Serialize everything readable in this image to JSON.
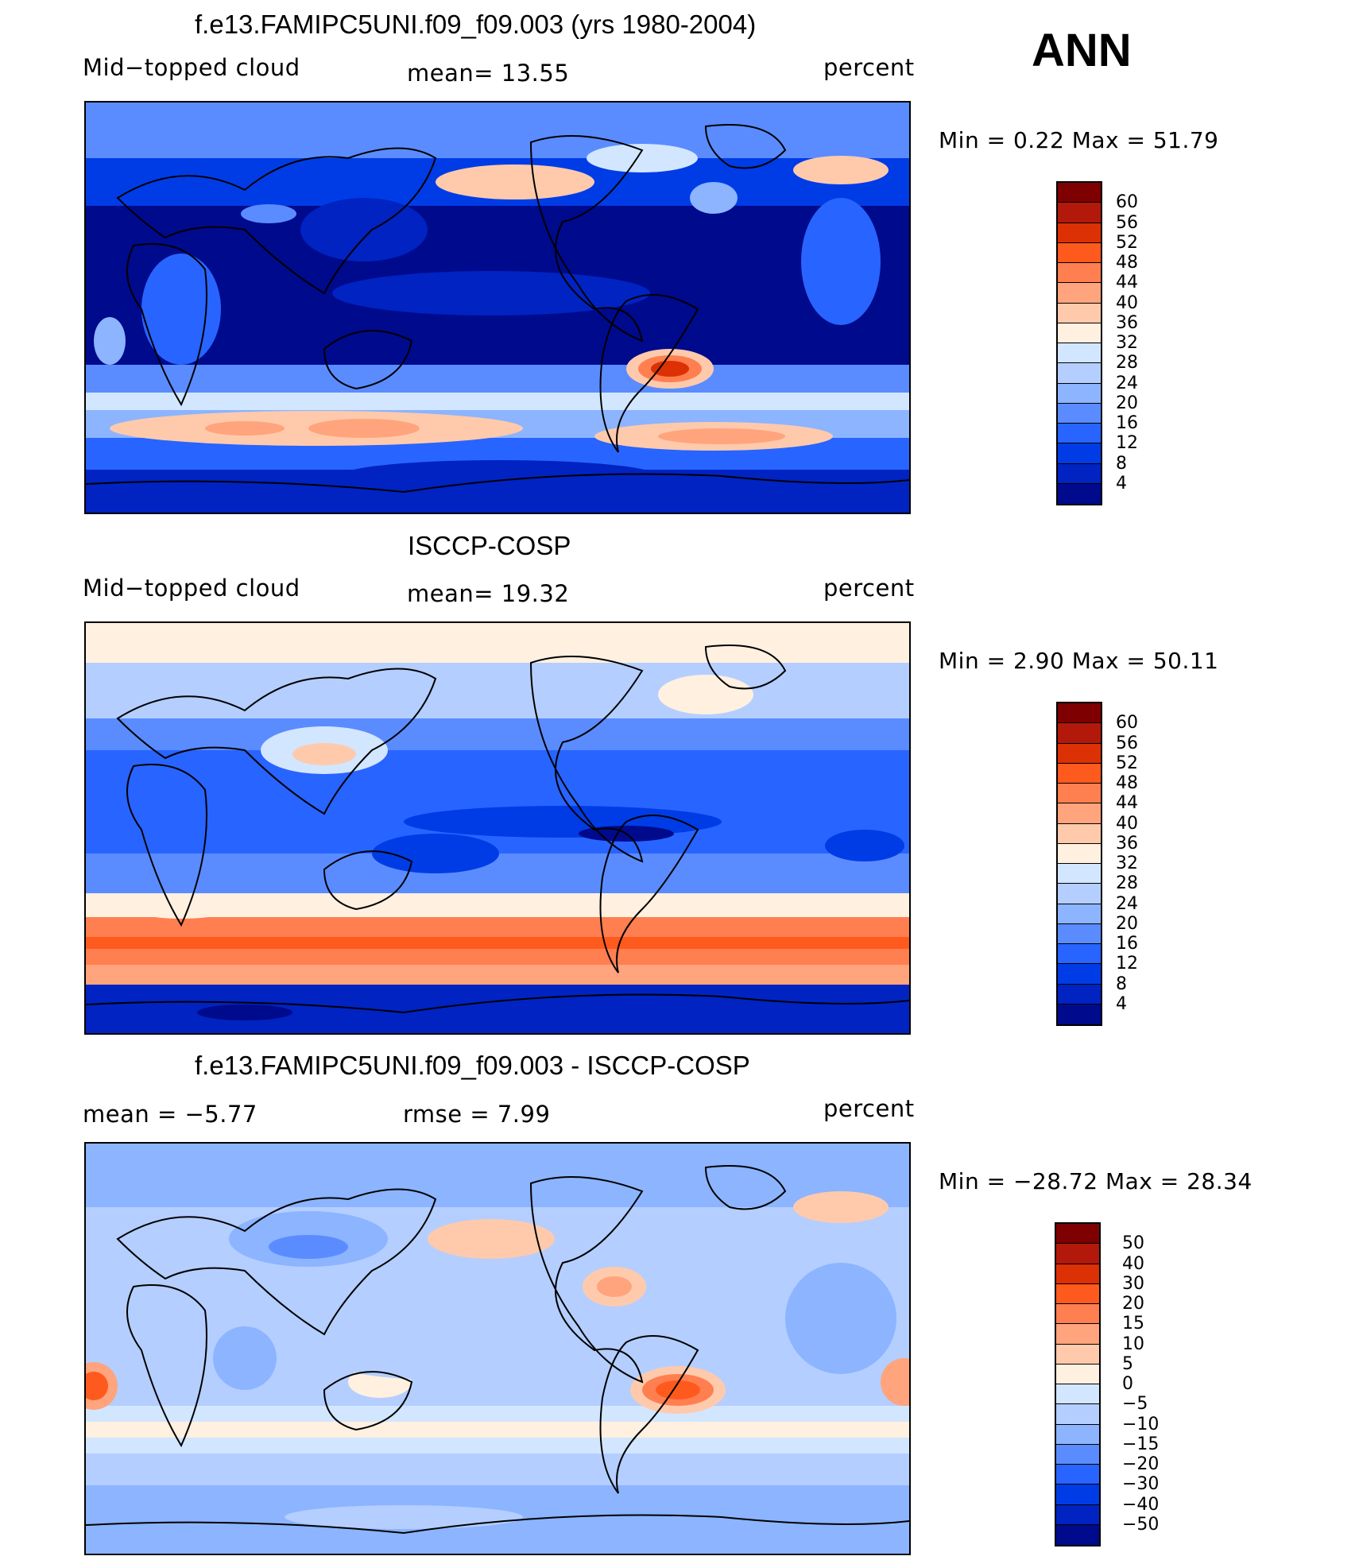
{
  "header": {
    "ann_label": "ANN"
  },
  "panels": [
    {
      "id": "model",
      "title": "f.e13.FAMIPC5UNI.f09_f09.003 (yrs 1980-2004)",
      "left_label": "Mid−topped  cloud",
      "center_label": "mean=   13.55",
      "right_label": "percent",
      "minmax": "Min  =    0.22  Max  =   51.79",
      "colorbar": {
        "ticks": [
          "60",
          "56",
          "52",
          "48",
          "44",
          "40",
          "36",
          "32",
          "28",
          "24",
          "20",
          "16",
          "12",
          "8",
          "4"
        ],
        "colors": [
          "#7f0000",
          "#b3190a",
          "#dc3005",
          "#ff5a1e",
          "#ff7f50",
          "#ffa47c",
          "#ffcaac",
          "#fff0e0",
          "#d2e6ff",
          "#b4ceff",
          "#8cb4ff",
          "#5a8cff",
          "#2864ff",
          "#003ce6",
          "#0023c2",
          "#000a8c"
        ]
      },
      "map_palette": "abs"
    },
    {
      "id": "obs",
      "title": "ISCCP-COSP",
      "left_label": "Mid−topped  cloud",
      "center_label": "mean=   19.32",
      "right_label": "percent",
      "minmax": "Min  =    2.90  Max  =   50.11",
      "colorbar": {
        "ticks": [
          "60",
          "56",
          "52",
          "48",
          "44",
          "40",
          "36",
          "32",
          "28",
          "24",
          "20",
          "16",
          "12",
          "8",
          "4"
        ],
        "colors": [
          "#7f0000",
          "#b3190a",
          "#dc3005",
          "#ff5a1e",
          "#ff7f50",
          "#ffa47c",
          "#ffcaac",
          "#fff0e0",
          "#d2e6ff",
          "#b4ceff",
          "#8cb4ff",
          "#5a8cff",
          "#2864ff",
          "#003ce6",
          "#0023c2",
          "#000a8c"
        ]
      },
      "map_palette": "abs"
    },
    {
      "id": "diff",
      "title": "f.e13.FAMIPC5UNI.f09_f09.003 - ISCCP-COSP",
      "left_label": "mean  =    −5.77",
      "center_label": "rmse  =     7.99",
      "right_label": "percent",
      "minmax": "Min  = −28.72  Max  =   28.34",
      "colorbar": {
        "ticks": [
          "50",
          "40",
          "30",
          "20",
          "15",
          "10",
          "5",
          "0",
          "−5",
          "−10",
          "−15",
          "−20",
          "−30",
          "−40",
          "−50"
        ],
        "colors": [
          "#7f0000",
          "#b3190a",
          "#dc3005",
          "#ff5a1e",
          "#ff7f50",
          "#ffa47c",
          "#ffcaac",
          "#fff0e0",
          "#d2e6ff",
          "#b4ceff",
          "#8cb4ff",
          "#5a8cff",
          "#2864ff",
          "#003ce6",
          "#0023c2",
          "#000a8c"
        ]
      },
      "map_palette": "diff"
    }
  ]
}
